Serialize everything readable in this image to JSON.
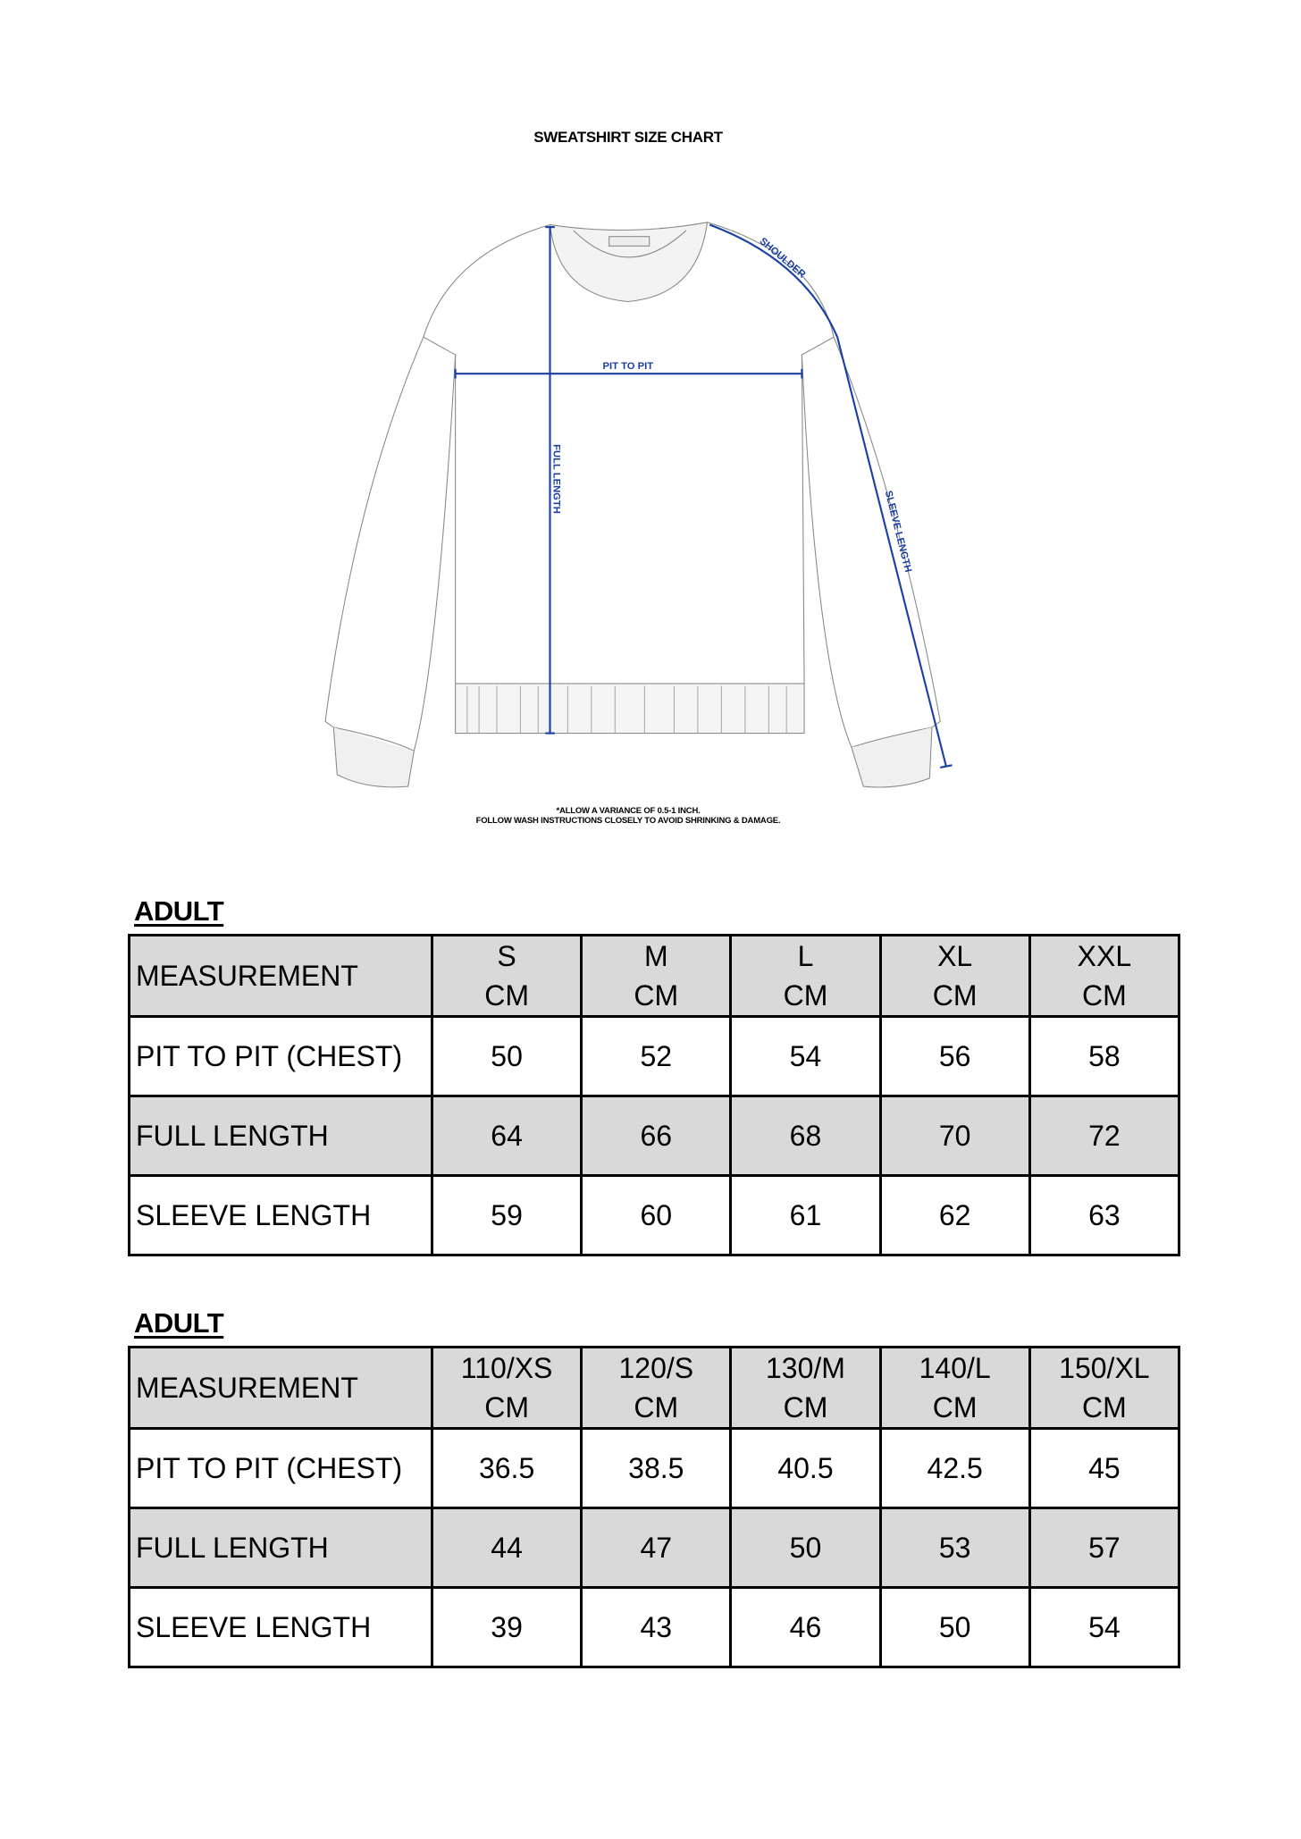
{
  "title": "SWEATSHIRT SIZE CHART",
  "diagram": {
    "labels": {
      "shoulder": "SHOULDER",
      "pit_to_pit": "PIT TO PIT",
      "full_length": "FULL LENGTH",
      "sleeve_length": "SLEEVE LENGTH"
    },
    "measure_color": "#1a3fa6",
    "notes": [
      "*ALLOW A VARIANCE OF 0.5-1 INCH.",
      "FOLLOW WASH INSTRUCTIONS CLOSELY TO AVOID SHRINKING & DAMAGE."
    ]
  },
  "tables": [
    {
      "label": "ADULT",
      "header": [
        "MEASUREMENT",
        [
          "S",
          "CM"
        ],
        [
          "M",
          "CM"
        ],
        [
          "L",
          "CM"
        ],
        [
          "XL",
          "CM"
        ],
        [
          "XXL",
          "CM"
        ]
      ],
      "rows": [
        [
          "PIT TO PIT (CHEST)",
          "50",
          "52",
          "54",
          "56",
          "58"
        ],
        [
          "FULL LENGTH",
          "64",
          "66",
          "68",
          "70",
          "72"
        ],
        [
          "SLEEVE LENGTH",
          "59",
          "60",
          "61",
          "62",
          "63"
        ]
      ]
    },
    {
      "label": "ADULT",
      "header": [
        "MEASUREMENT",
        [
          "110/XS",
          "CM"
        ],
        [
          "120/S",
          "CM"
        ],
        [
          "130/M",
          "CM"
        ],
        [
          "140/L",
          "CM"
        ],
        [
          "150/XL",
          "CM"
        ]
      ],
      "rows": [
        [
          "PIT TO PIT (CHEST)",
          "36.5",
          "38.5",
          "40.5",
          "42.5",
          "45"
        ],
        [
          "FULL LENGTH",
          "44",
          "47",
          "50",
          "53",
          "57"
        ],
        [
          "SLEEVE LENGTH",
          "39",
          "43",
          "46",
          "50",
          "54"
        ]
      ]
    }
  ],
  "header_fill": "#d9d9d9"
}
